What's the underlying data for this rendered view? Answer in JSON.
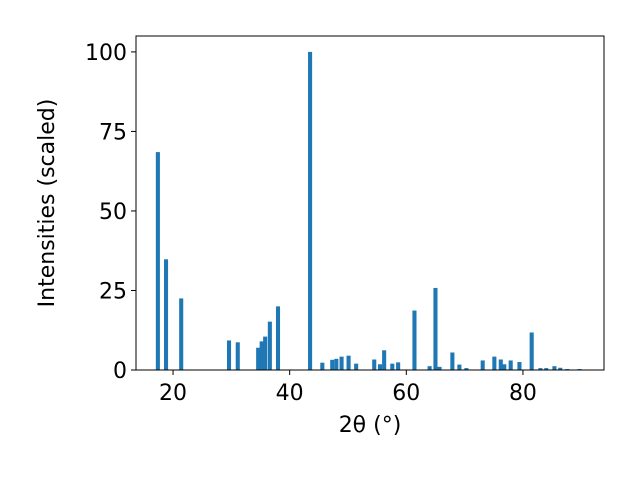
{
  "chart_data": {
    "type": "bar",
    "xlabel": "2θ (°)",
    "ylabel": "Intensities (scaled)",
    "color": "#1f77b4",
    "x": [
      17.4,
      18.8,
      21.4,
      29.6,
      31.1,
      34.6,
      35.2,
      35.8,
      36.6,
      38.0,
      43.5,
      45.6,
      47.3,
      48.0,
      48.9,
      50.1,
      51.4,
      54.5,
      55.5,
      56.2,
      57.6,
      58.6,
      61.4,
      64.0,
      65.0,
      65.7,
      67.9,
      69.1,
      70.3,
      73.1,
      75.1,
      76.2,
      76.8,
      77.9,
      79.4,
      81.5,
      83.0,
      84.0,
      85.4,
      86.4,
      87.6,
      89.7
    ],
    "values": [
      68.5,
      34.8,
      22.5,
      9.3,
      8.7,
      7,
      9,
      10.5,
      15.2,
      20,
      100,
      2.3,
      3.2,
      3.5,
      4.2,
      4.5,
      2,
      3.3,
      1.8,
      6.2,
      2,
      2.4,
      18.7,
      1.2,
      25.8,
      1,
      5.5,
      1.7,
      0.6,
      3,
      4.2,
      3.3,
      1.8,
      3,
      2.5,
      11.8,
      0.6,
      0.6,
      1.2,
      0.7,
      0.3,
      0.3
    ],
    "xlim": [
      13.65,
      93.9
    ],
    "ylim": [
      0,
      105
    ],
    "xticks": [
      20,
      40,
      60,
      80
    ],
    "yticks": [
      0,
      25,
      50,
      75,
      100
    ]
  }
}
